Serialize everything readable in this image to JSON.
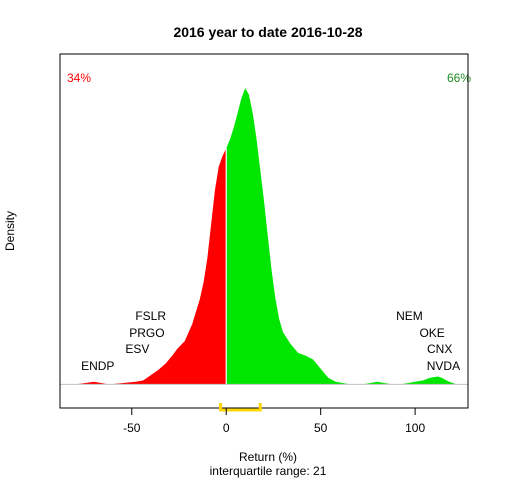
{
  "chart_data": {
    "type": "area",
    "title": "2016  year to date 2016-10-28",
    "xlabel": "Return (%)",
    "subtitle": "interquartile range: 21",
    "ylabel": "Density",
    "xlim": [
      -88,
      128
    ],
    "ylim": [
      -0.0018,
      0.0252
    ],
    "xticks": [
      -50,
      0,
      50,
      100
    ],
    "xtick_labels": [
      "-50",
      "0",
      "50",
      "100"
    ],
    "split_at": 0,
    "left_color": "#ff0000",
    "right_color": "#00e600",
    "baseline_color": "#c0c0c0",
    "iqr_color": "#ffd700",
    "divider_color": "#ffffff",
    "pct_negative": {
      "label": "34%",
      "color": "#ff0000"
    },
    "pct_positive": {
      "label": "66%",
      "color": "#228b22"
    },
    "iqr_range": [
      -3,
      18
    ],
    "density_curve": [
      [
        -80,
        0
      ],
      [
        -75,
        0.0001
      ],
      [
        -70,
        0.0002
      ],
      [
        -66,
        0.0001
      ],
      [
        -62,
        0
      ],
      [
        -55,
        0.0001
      ],
      [
        -48,
        0.0002
      ],
      [
        -44,
        0.0003
      ],
      [
        -40,
        0.0007
      ],
      [
        -36,
        0.0011
      ],
      [
        -32,
        0.0016
      ],
      [
        -28,
        0.0023
      ],
      [
        -26,
        0.0027
      ],
      [
        -22,
        0.0033
      ],
      [
        -18,
        0.0046
      ],
      [
        -14,
        0.0065
      ],
      [
        -12,
        0.0078
      ],
      [
        -10,
        0.0096
      ],
      [
        -8,
        0.0122
      ],
      [
        -6,
        0.0148
      ],
      [
        -4,
        0.0166
      ],
      [
        -2,
        0.0174
      ],
      [
        0,
        0.018
      ],
      [
        2,
        0.0187
      ],
      [
        4,
        0.0196
      ],
      [
        6,
        0.0207
      ],
      [
        8,
        0.0218
      ],
      [
        10,
        0.0226
      ],
      [
        12,
        0.0221
      ],
      [
        14,
        0.0207
      ],
      [
        16,
        0.0188
      ],
      [
        18,
        0.0164
      ],
      [
        20,
        0.014
      ],
      [
        22,
        0.0113
      ],
      [
        24,
        0.0087
      ],
      [
        26,
        0.0066
      ],
      [
        28,
        0.005
      ],
      [
        30,
        0.004
      ],
      [
        34,
        0.0031
      ],
      [
        38,
        0.0024
      ],
      [
        42,
        0.0022
      ],
      [
        46,
        0.0019
      ],
      [
        50,
        0.0012
      ],
      [
        54,
        0.0005
      ],
      [
        58,
        0.0002
      ],
      [
        62,
        0.0001
      ],
      [
        66,
        0
      ],
      [
        72,
        0
      ],
      [
        76,
        0.0001
      ],
      [
        80,
        0.0002
      ],
      [
        84,
        0.0001
      ],
      [
        88,
        0
      ],
      [
        92,
        0
      ],
      [
        96,
        0.0001
      ],
      [
        100,
        0.0002
      ],
      [
        104,
        0.0003
      ],
      [
        108,
        0.0005
      ],
      [
        112,
        0.0006
      ],
      [
        114,
        0.0005
      ],
      [
        118,
        0.0002
      ],
      [
        122,
        0
      ]
    ],
    "annotations": [
      {
        "label": "ENDP",
        "x": -68,
        "y": 0.0011
      },
      {
        "label": "ESV",
        "x": -47,
        "y": 0.0024
      },
      {
        "label": "PRGO",
        "x": -42,
        "y": 0.0036
      },
      {
        "label": "FSLR",
        "x": -40,
        "y": 0.0049
      },
      {
        "label": "NEM",
        "x": 97,
        "y": 0.0049
      },
      {
        "label": "OKE",
        "x": 109,
        "y": 0.0036
      },
      {
        "label": "CNX",
        "x": 113,
        "y": 0.0024
      },
      {
        "label": "NVDA",
        "x": 115,
        "y": 0.0011
      }
    ]
  }
}
